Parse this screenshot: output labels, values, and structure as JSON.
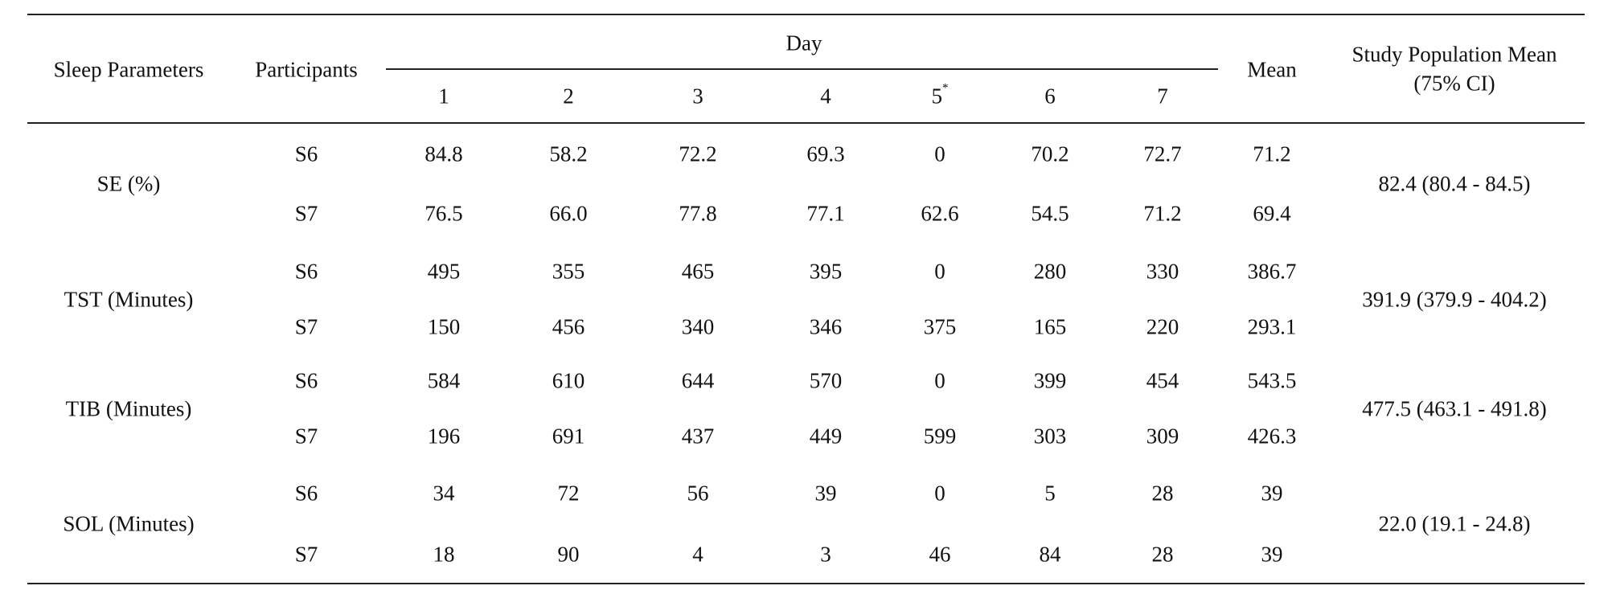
{
  "table": {
    "header": {
      "parameters": "Sleep Parameters",
      "participants": "Participants",
      "day": "Day",
      "days": [
        "1",
        "2",
        "3",
        "4",
        "5",
        "6",
        "7"
      ],
      "day_note": "*",
      "mean": "Mean",
      "population_mean": [
        "Study Population Mean",
        "(75% CI)"
      ]
    },
    "groups": [
      {
        "parameter": "SE (%)",
        "population_mean": "82.4 (80.4 - 84.5)",
        "rows": [
          {
            "participant": "S6",
            "values": [
              "84.8",
              "58.2",
              "72.2",
              "69.3",
              "0",
              "70.2",
              "72.7"
            ],
            "mean": "71.2"
          },
          {
            "participant": "S7",
            "values": [
              "76.5",
              "66.0",
              "77.8",
              "77.1",
              "62.6",
              "54.5",
              "71.2"
            ],
            "mean": "69.4"
          }
        ]
      },
      {
        "parameter": "TST (Minutes)",
        "population_mean": "391.9 (379.9 - 404.2)",
        "rows": [
          {
            "participant": "S6",
            "values": [
              "495",
              "355",
              "465",
              "395",
              "0",
              "280",
              "330"
            ],
            "mean": "386.7"
          },
          {
            "participant": "S7",
            "values": [
              "150",
              "456",
              "340",
              "346",
              "375",
              "165",
              "220"
            ],
            "mean": "293.1"
          }
        ]
      },
      {
        "parameter": "TIB (Minutes)",
        "population_mean": "477.5 (463.1 - 491.8)",
        "rows": [
          {
            "participant": "S6",
            "values": [
              "584",
              "610",
              "644",
              "570",
              "0",
              "399",
              "454"
            ],
            "mean": "543.5"
          },
          {
            "participant": "S7",
            "values": [
              "196",
              "691",
              "437",
              "449",
              "599",
              "303",
              "309"
            ],
            "mean": "426.3"
          }
        ]
      },
      {
        "parameter": "SOL (Minutes)",
        "population_mean": "22.0 (19.1 - 24.8)",
        "rows": [
          {
            "participant": "S6",
            "values": [
              "34",
              "72",
              "56",
              "39",
              "0",
              "5",
              "28"
            ],
            "mean": "39"
          },
          {
            "participant": "S7",
            "values": [
              "18",
              "90",
              "4",
              "3",
              "46",
              "84",
              "28"
            ],
            "mean": "39"
          }
        ]
      }
    ]
  }
}
